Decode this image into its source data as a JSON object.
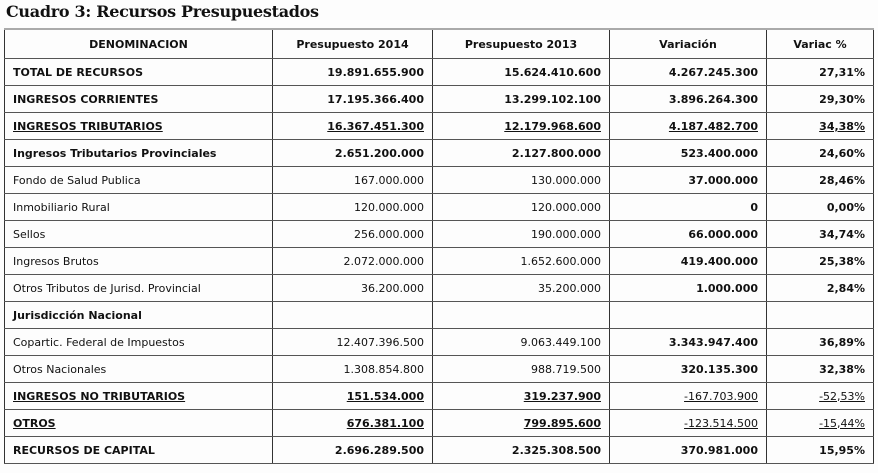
{
  "title": "Cuadro 3: Recursos Presupuestados",
  "table": {
    "headers": [
      "DENOMINACION",
      "Presupuesto 2014",
      "Presupuesto 2013",
      "Variación",
      "Variac %"
    ],
    "rows": [
      {
        "style": "bold",
        "cells": [
          "TOTAL DE RECURSOS",
          "19.891.655.900",
          "15.624.410.600",
          "4.267.245.300",
          "27,31%"
        ]
      },
      {
        "style": "bold",
        "cells": [
          "INGRESOS CORRIENTES",
          "17.195.366.400",
          "13.299.102.100",
          "3.896.264.300",
          "29,30%"
        ]
      },
      {
        "style": "bold-underline",
        "cells": [
          "INGRESOS TRIBUTARIOS",
          "16.367.451.300",
          "12.179.968.600",
          "4.187.482.700",
          "34,38%"
        ]
      },
      {
        "style": "bold",
        "cells": [
          "Ingresos Tributarios Provinciales",
          "2.651.200.000",
          "2.127.800.000",
          "523.400.000",
          "24,60%"
        ]
      },
      {
        "style": "light",
        "cells": [
          "Fondo de Salud Publica",
          "167.000.000",
          "130.000.000",
          "37.000.000",
          "28,46%"
        ]
      },
      {
        "style": "light",
        "cells": [
          "Inmobiliario Rural",
          "120.000.000",
          "120.000.000",
          "0",
          "0,00%"
        ]
      },
      {
        "style": "light",
        "cells": [
          "Sellos",
          "256.000.000",
          "190.000.000",
          "66.000.000",
          "34,74%"
        ]
      },
      {
        "style": "light",
        "cells": [
          "Ingresos Brutos",
          "2.072.000.000",
          "1.652.600.000",
          "419.400.000",
          "25,38%"
        ]
      },
      {
        "style": "light",
        "cells": [
          "Otros Tributos de Jurisd. Provincial",
          "36.200.000",
          "35.200.000",
          "1.000.000",
          "2,84%"
        ]
      },
      {
        "style": "bold",
        "cells": [
          "Jurisdicción  Nacional",
          "",
          "",
          "",
          ""
        ]
      },
      {
        "style": "light",
        "cells": [
          "Copartic. Federal de Impuestos",
          "12.407.396.500",
          "9.063.449.100",
          "3.343.947.400",
          "36,89%"
        ]
      },
      {
        "style": "light",
        "cells": [
          "Otros Nacionales",
          "1.308.854.800",
          "988.719.500",
          "320.135.300",
          "32,38%"
        ]
      },
      {
        "style": "bold-underline-neg",
        "cells": [
          "INGRESOS NO TRIBUTARIOS",
          "151.534.000",
          "319.237.900",
          "-167.703.900",
          "-52,53%"
        ]
      },
      {
        "style": "bold-underline-neg",
        "cells": [
          "OTROS",
          "676.381.100",
          "799.895.600",
          "-123.514.500",
          "-15,44%"
        ]
      },
      {
        "style": "bold",
        "cells": [
          "RECURSOS DE CAPITAL",
          "2.696.289.500",
          "2.325.308.500",
          "370.981.000",
          "15,95%"
        ]
      }
    ]
  }
}
